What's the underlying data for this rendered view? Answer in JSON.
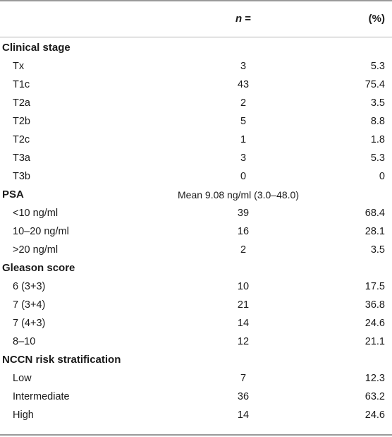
{
  "header": {
    "n_label": "n",
    "n_eq": "=",
    "pct_label": "(%)"
  },
  "sections": [
    {
      "title": "Clinical stage",
      "rows": [
        {
          "label": "Tx",
          "n": "3",
          "pct": "5.3"
        },
        {
          "label": "T1c",
          "n": "43",
          "pct": "75.4"
        },
        {
          "label": "T2a",
          "n": "2",
          "pct": "3.5"
        },
        {
          "label": "T2b",
          "n": "5",
          "pct": "8.8"
        },
        {
          "label": "T2c",
          "n": "1",
          "pct": "1.8"
        },
        {
          "label": "T3a",
          "n": "3",
          "pct": "5.3"
        },
        {
          "label": "T3b",
          "n": "0",
          "pct": "0"
        }
      ]
    },
    {
      "title": "PSA",
      "note": "Mean 9.08 ng/ml (3.0–48.0)",
      "rows": [
        {
          "label": "<10 ng/ml",
          "n": "39",
          "pct": "68.4"
        },
        {
          "label": "10–20 ng/ml",
          "n": "16",
          "pct": "28.1"
        },
        {
          "label": ">20 ng/ml",
          "n": "2",
          "pct": "3.5"
        }
      ]
    },
    {
      "title": "Gleason score",
      "rows": [
        {
          "label": "6 (3+3)",
          "n": "10",
          "pct": "17.5"
        },
        {
          "label": "7 (3+4)",
          "n": "21",
          "pct": "36.8"
        },
        {
          "label": "7 (4+3)",
          "n": "14",
          "pct": "24.6"
        },
        {
          "label": "8–10",
          "n": "12",
          "pct": "21.1"
        }
      ]
    },
    {
      "title": "NCCN risk stratification",
      "rows": [
        {
          "label": "Low",
          "n": "7",
          "pct": "12.3"
        },
        {
          "label": "Intermediate",
          "n": "36",
          "pct": "63.2"
        },
        {
          "label": "High",
          "n": "14",
          "pct": "24.6"
        }
      ]
    }
  ]
}
